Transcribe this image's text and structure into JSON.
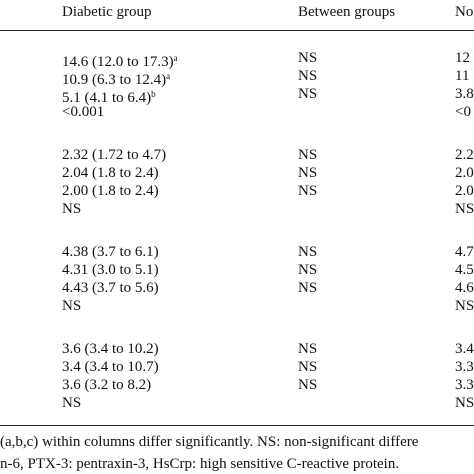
{
  "header": {
    "columns": [
      "Diabetic group",
      "Between groups",
      "No"
    ]
  },
  "groups": [
    {
      "rows": [
        {
          "cells": [
            "14.6 (12.0 to 17.3)",
            "NS",
            "12"
          ],
          "sup": "a"
        },
        {
          "cells": [
            "10.9 (6.3 to 12.4)",
            "NS",
            "11"
          ],
          "sup": "a"
        },
        {
          "cells": [
            "5.1 (4.1 to 6.4)",
            "NS",
            "3.8"
          ],
          "sup": "b"
        },
        {
          "cells": [
            "<0.001",
            "",
            "<0"
          ]
        }
      ]
    },
    {
      "rows": [
        {
          "cells": [
            "2.32 (1.72 to 4.7)",
            "NS",
            "2.2"
          ]
        },
        {
          "cells": [
            "2.04 (1.8 to 2.4)",
            "NS",
            "2.0"
          ]
        },
        {
          "cells": [
            "2.00 (1.8 to 2.4)",
            "NS",
            "2.0"
          ]
        },
        {
          "cells": [
            "NS",
            "",
            "NS"
          ]
        }
      ]
    },
    {
      "rows": [
        {
          "cells": [
            "4.38 (3.7 to 6.1)",
            "NS",
            "4.7"
          ]
        },
        {
          "cells": [
            "4.31 (3.0 to 5.1)",
            "NS",
            "4.5"
          ]
        },
        {
          "cells": [
            "4.43 (3.7 to 5.6)",
            "NS",
            "4.6"
          ]
        },
        {
          "cells": [
            "NS",
            "",
            "NS"
          ]
        }
      ]
    },
    {
      "rows": [
        {
          "cells": [
            "3.6 (3.4 to 10.2)",
            "NS",
            "3.4"
          ]
        },
        {
          "cells": [
            "3.4 (3.4 to 10.7)",
            "NS",
            "3.3"
          ]
        },
        {
          "cells": [
            "3.6 (3.2 to 8.2)",
            "NS",
            "3.3"
          ]
        },
        {
          "cells": [
            "NS",
            "",
            "NS"
          ]
        }
      ]
    }
  ],
  "footnotes": [
    "(a,b,c) within columns differ significantly. NS: non-significant differe",
    "n-6, PTX-3: pentraxin-3, HsCrp: high sensitive C-reactive protein."
  ]
}
